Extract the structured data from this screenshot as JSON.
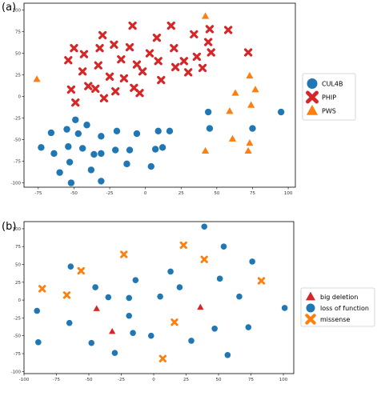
{
  "chart_data": [
    {
      "type": "scatter",
      "panel_label": "(a)",
      "xlim": [
        -85,
        105
      ],
      "ylim": [
        -105,
        108
      ],
      "xticks": [
        -75,
        -50,
        -25,
        0,
        25,
        50,
        75,
        100
      ],
      "yticks": [
        -100,
        -75,
        -50,
        -25,
        0,
        25,
        50,
        75,
        100
      ],
      "legend_position": "right",
      "series": [
        {
          "name": "CUL4B",
          "marker": "circle",
          "color": "#1f77b4",
          "points": [
            [
              -73,
              -59
            ],
            [
              -66,
              -42
            ],
            [
              -64,
              -66
            ],
            [
              -60,
              -88
            ],
            [
              -55,
              -38
            ],
            [
              -54,
              -58
            ],
            [
              -53,
              -76
            ],
            [
              -52,
              -100
            ],
            [
              -49,
              -27
            ],
            [
              -47,
              -43
            ],
            [
              -44,
              -60
            ],
            [
              -41,
              -33
            ],
            [
              -38,
              -85
            ],
            [
              -36,
              -67
            ],
            [
              -31,
              -46
            ],
            [
              -31,
              -66
            ],
            [
              -31,
              -98
            ],
            [
              -21,
              -62
            ],
            [
              -20,
              -40
            ],
            [
              -13,
              -78
            ],
            [
              -11,
              -62
            ],
            [
              -6,
              -43
            ],
            [
              4,
              -81
            ],
            [
              7,
              -61
            ],
            [
              9,
              -40
            ],
            [
              12,
              -59
            ],
            [
              17,
              -40
            ],
            [
              44,
              -18
            ],
            [
              45,
              -37
            ],
            [
              75,
              -37
            ],
            [
              95,
              -18
            ]
          ]
        },
        {
          "name": "PHIP",
          "marker": "x",
          "color": "#d62728",
          "points": [
            [
              -54,
              42
            ],
            [
              -50,
              56
            ],
            [
              -44,
              29
            ],
            [
              -52,
              8
            ],
            [
              -49,
              -7
            ],
            [
              -43,
              49
            ],
            [
              -40,
              12
            ],
            [
              -33,
              36
            ],
            [
              -30,
              71
            ],
            [
              -32,
              56
            ],
            [
              -35,
              9
            ],
            [
              -22,
              60
            ],
            [
              -25,
              23
            ],
            [
              -21,
              6
            ],
            [
              -29,
              -2
            ],
            [
              -17,
              43
            ],
            [
              -15,
              21
            ],
            [
              -9,
              82
            ],
            [
              -11,
              57
            ],
            [
              -6,
              37
            ],
            [
              -8,
              10
            ],
            [
              -4,
              4
            ],
            [
              -2,
              29
            ],
            [
              3,
              50
            ],
            [
              8,
              68
            ],
            [
              9,
              41
            ],
            [
              11,
              19
            ],
            [
              18,
              82
            ],
            [
              20,
              56
            ],
            [
              21,
              34
            ],
            [
              27,
              41
            ],
            [
              30,
              28
            ],
            [
              34,
              72
            ],
            [
              36,
              46
            ],
            [
              40,
              33
            ],
            [
              45,
              78
            ],
            [
              46,
              51
            ],
            [
              44,
              63
            ],
            [
              58,
              77
            ],
            [
              72,
              51
            ]
          ]
        },
        {
          "name": "PWS",
          "marker": "triangle",
          "color": "#ff7f0e",
          "points": [
            [
              -76,
              20
            ],
            [
              42,
              93
            ],
            [
              73,
              24
            ],
            [
              63,
              4
            ],
            [
              77,
              8
            ],
            [
              74,
              -10
            ],
            [
              59,
              -17
            ],
            [
              61,
              -49
            ],
            [
              72,
              -63
            ],
            [
              42,
              -63
            ],
            [
              73,
              -54
            ]
          ]
        }
      ]
    },
    {
      "type": "scatter",
      "panel_label": "(b)",
      "xlim": [
        -100,
        108
      ],
      "ylim": [
        -103,
        110
      ],
      "xticks": [
        -100,
        -75,
        -50,
        -25,
        0,
        25,
        50,
        75,
        100
      ],
      "yticks": [
        -100,
        -75,
        -50,
        -25,
        0,
        25,
        50,
        75,
        100
      ],
      "legend_position": "right",
      "series": [
        {
          "name": "big deletion",
          "marker": "triangle",
          "color": "#d62728",
          "points": [
            [
              -44,
              -12
            ],
            [
              -32,
              -44
            ],
            [
              36,
              -10
            ]
          ]
        },
        {
          "name": "loss of function",
          "marker": "circle",
          "color": "#1f77b4",
          "points": [
            [
              -90,
              -15
            ],
            [
              -89,
              -59
            ],
            [
              -65,
              -32
            ],
            [
              -64,
              47
            ],
            [
              -45,
              18
            ],
            [
              -35,
              4
            ],
            [
              -48,
              -60
            ],
            [
              -30,
              -74
            ],
            [
              -19,
              -22
            ],
            [
              -19,
              3
            ],
            [
              -14,
              28
            ],
            [
              -16,
              -46
            ],
            [
              -2,
              -50
            ],
            [
              5,
              5
            ],
            [
              13,
              40
            ],
            [
              20,
              18
            ],
            [
              29,
              -57
            ],
            [
              39,
              103
            ],
            [
              47,
              -40
            ],
            [
              54,
              75
            ],
            [
              51,
              30
            ],
            [
              57,
              -77
            ],
            [
              66,
              5
            ],
            [
              73,
              -38
            ],
            [
              76,
              54
            ],
            [
              101,
              -11
            ]
          ]
        },
        {
          "name": "missense",
          "marker": "x",
          "color": "#ff7f0e",
          "points": [
            [
              -86,
              16
            ],
            [
              -67,
              7
            ],
            [
              -56,
              41
            ],
            [
              -23,
              64
            ],
            [
              7,
              -82
            ],
            [
              16,
              -31
            ],
            [
              23,
              77
            ],
            [
              39,
              57
            ],
            [
              83,
              27
            ]
          ]
        }
      ]
    }
  ]
}
